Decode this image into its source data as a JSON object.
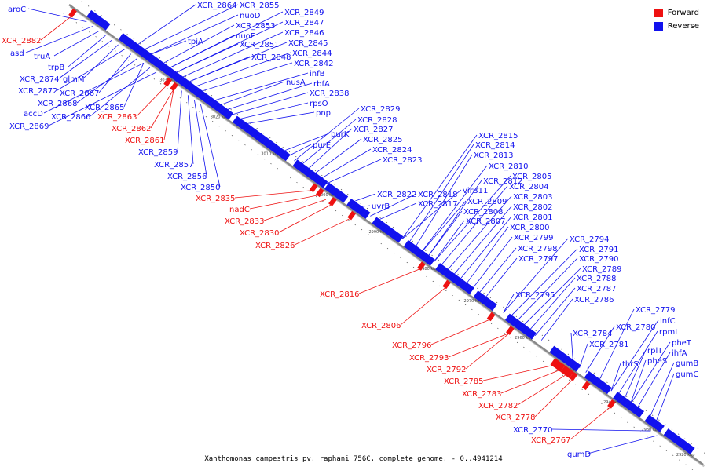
{
  "title": "",
  "caption": "Xanthomonas campestris pv. raphani 756C, complete genome. - 0..4941214",
  "legend": [
    {
      "label": "Forward",
      "color": "#ee1111"
    },
    {
      "label": "Reverse",
      "color": "#1111ee"
    }
  ],
  "colors": {
    "forward": "#ee1111",
    "reverse": "#1111ee",
    "backbone": "#888888"
  },
  "scale_ticks": [
    "3030 kbp",
    "3020 kbp",
    "3010 kbp",
    "3000 kbp",
    "2990 kbp",
    "2980 kbp",
    "2970 kbp",
    "2960 kbp",
    "2950 kbp",
    "2940 kbp",
    "2930 kbp",
    "2920 kbp"
  ],
  "reverse_labels_top": [
    "XCR_2864",
    "XCR_2855",
    "nuoD",
    "XCR_2853",
    "nuoF",
    "XCR_2851",
    "XCR_2848",
    "tpiA",
    "XCR_2849",
    "XCR_2847",
    "XCR_2846",
    "XCR_2845",
    "XCR_2844",
    "XCR_2842",
    "infB",
    "nusA",
    "rbfA",
    "XCR_2838",
    "rpsO",
    "pnp",
    "XCR_2829",
    "XCR_2828",
    "XCR_2827",
    "purK",
    "XCR_2825",
    "purE",
    "XCR_2824",
    "XCR_2823",
    "XCR_2822",
    "uvrB",
    "XCR_2818",
    "XCR_2817",
    "XCR_2815",
    "XCR_2814",
    "XCR_2813",
    "XCR_2810",
    "XCR_2812",
    "virB11",
    "XCR_2805",
    "XCR_2804",
    "XCR_2809",
    "XCR_2803",
    "XCR_2808",
    "XCR_2802",
    "XCR_2807",
    "XCR_2801",
    "XCR_2800",
    "XCR_2799",
    "XCR_2798",
    "XCR_2797",
    "XCR_2795",
    "XCR_2794",
    "XCR_2791",
    "XCR_2790",
    "XCR_2789",
    "XCR_2788",
    "XCR_2787",
    "XCR_2786",
    "XCR_2784",
    "XCR_2781",
    "XCR_2780",
    "XCR_2779",
    "infC",
    "rpmI",
    "rplT",
    "thrS",
    "pheT",
    "ihfA",
    "pheS",
    "gumB",
    "gumC"
  ],
  "reverse_labels_left": [
    "aroC",
    "asd",
    "truA",
    "trpB",
    "XCR_2874",
    "glmM",
    "XCR_2872",
    "XCR_2867",
    "XCR_2868",
    "accD",
    "XCR_2866",
    "XCR_2865",
    "XCR_2869",
    "XCR_2859",
    "XCR_2857",
    "XCR_2856",
    "XCR_2850",
    "XCR_2770",
    "gumD"
  ],
  "forward_labels": [
    "XCR_2882",
    "XCR_2863",
    "XCR_2862",
    "XCR_2861",
    "XCR_2835",
    "nadC",
    "XCR_2833",
    "XCR_2830",
    "XCR_2826",
    "XCR_2816",
    "XCR_2806",
    "XCR_2796",
    "XCR_2793",
    "XCR_2792",
    "XCR_2785",
    "XCR_2783",
    "XCR_2782",
    "XCR_2778",
    "XCR_2767"
  ]
}
